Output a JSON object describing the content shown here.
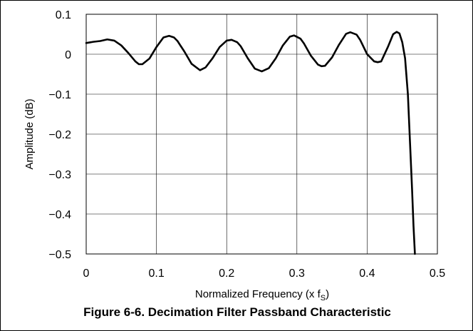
{
  "caption": "Figure 6-6. Decimation Filter Passband Characteristic",
  "chart_data": {
    "type": "line",
    "title": "",
    "xlabel": "Normalized Frequency (x f",
    "xlabel_subscript": "S",
    "xlabel_suffix": ")",
    "ylabel": "Amplitude (dB)",
    "xlim": [
      0,
      0.5
    ],
    "ylim": [
      -0.5,
      0.1
    ],
    "x_ticks": [
      0,
      0.1,
      0.2,
      0.3,
      0.4,
      0.5
    ],
    "x_tick_labels": [
      "0",
      "0.1",
      "0.2",
      "0.3",
      "0.4",
      "0.5"
    ],
    "y_ticks": [
      0.1,
      0,
      -0.1,
      -0.2,
      -0.3,
      -0.4,
      -0.5
    ],
    "y_tick_labels": [
      "0.1",
      "0",
      "−0.1",
      "−0.2",
      "−0.3",
      "−0.4",
      "−0.5"
    ],
    "grid": true,
    "line_color": "#000000",
    "series": [
      {
        "x": [
          0,
          0.01,
          0.02,
          0.03,
          0.04,
          0.05,
          0.06,
          0.07,
          0.075,
          0.08,
          0.09,
          0.1,
          0.11,
          0.118,
          0.125,
          0.13,
          0.14,
          0.15,
          0.162,
          0.17,
          0.18,
          0.19,
          0.2,
          0.207,
          0.215,
          0.22,
          0.23,
          0.24,
          0.25,
          0.26,
          0.27,
          0.28,
          0.29,
          0.296,
          0.305,
          0.31,
          0.32,
          0.33,
          0.335,
          0.34,
          0.35,
          0.36,
          0.37,
          0.376,
          0.385,
          0.39,
          0.4,
          0.41,
          0.415,
          0.42,
          0.43,
          0.437,
          0.442,
          0.446,
          0.45,
          0.454,
          0.458,
          0.461,
          0.464,
          0.466,
          0.468
        ],
        "y": [
          0.028,
          0.031,
          0.033,
          0.037,
          0.034,
          0.022,
          0.003,
          -0.018,
          -0.025,
          -0.025,
          -0.011,
          0.018,
          0.042,
          0.046,
          0.042,
          0.033,
          0.006,
          -0.024,
          -0.04,
          -0.033,
          -0.01,
          0.018,
          0.034,
          0.036,
          0.03,
          0.02,
          -0.01,
          -0.036,
          -0.043,
          -0.035,
          -0.01,
          0.022,
          0.044,
          0.047,
          0.039,
          0.027,
          -0.004,
          -0.026,
          -0.03,
          -0.029,
          -0.008,
          0.024,
          0.051,
          0.055,
          0.049,
          0.036,
          0.0,
          -0.018,
          -0.02,
          -0.018,
          0.02,
          0.05,
          0.056,
          0.052,
          0.03,
          -0.01,
          -0.1,
          -0.22,
          -0.34,
          -0.43,
          -0.5
        ]
      }
    ]
  }
}
